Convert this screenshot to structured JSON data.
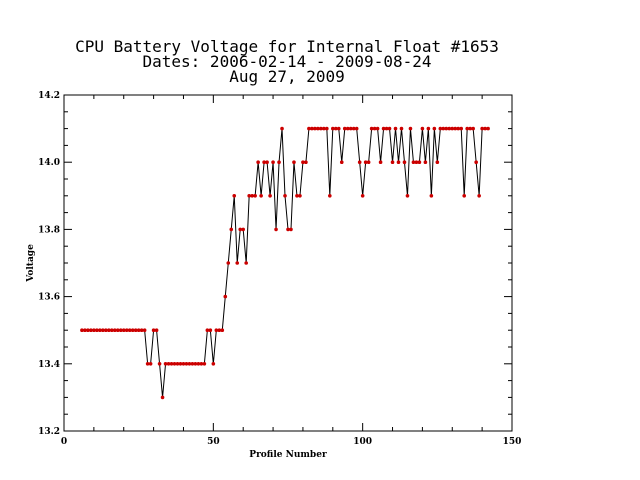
{
  "chart_data": {
    "type": "line",
    "title_lines": [
      "CPU Battery Voltage for Internal Float #1653",
      "Dates:  2006-02-14 -  2009-08-24",
      "Aug 27, 2009"
    ],
    "xlabel": "Profile Number",
    "ylabel": "Voltage",
    "xlim": [
      0,
      150
    ],
    "ylim": [
      13.2,
      14.2
    ],
    "x_ticks": [
      0,
      50,
      100,
      150
    ],
    "y_ticks": [
      13.2,
      13.4,
      13.6,
      13.8,
      14.0,
      14.2
    ],
    "y_tick_labels": [
      "13.2",
      "13.4",
      "13.6",
      "13.8",
      "14.0",
      "14.2"
    ],
    "grid": false,
    "line_color": "#000000",
    "marker_color": "#cc0000",
    "series": [
      {
        "x": [
          6,
          7,
          8,
          9,
          10,
          11,
          12,
          13,
          14,
          15,
          16,
          17,
          18,
          19,
          20,
          21,
          22,
          23,
          24,
          25,
          26,
          27,
          28,
          29,
          30,
          31,
          32,
          33,
          34,
          35,
          36,
          37,
          38,
          39,
          40,
          41,
          42,
          43,
          44,
          45,
          46,
          47,
          48,
          49,
          50,
          51,
          52,
          53,
          54,
          55,
          56,
          57,
          58,
          59,
          60,
          61,
          62,
          63,
          64,
          65,
          66,
          67,
          68,
          69,
          70,
          71,
          72,
          73,
          74,
          75,
          76,
          77,
          78,
          79,
          80,
          81,
          82,
          83,
          84,
          85,
          86,
          87,
          88,
          89,
          90,
          91,
          92,
          93,
          94,
          95,
          96,
          97,
          98,
          99,
          100,
          101,
          102,
          103,
          104,
          105,
          106,
          107,
          108,
          109,
          110,
          111,
          112,
          113,
          114,
          115,
          116,
          117,
          118,
          119,
          120,
          121,
          122,
          123,
          124,
          125,
          126,
          127,
          128,
          129,
          130,
          131,
          132,
          133,
          134,
          135,
          136,
          137,
          138,
          139,
          140,
          141,
          142
        ],
        "y": [
          13.5,
          13.5,
          13.5,
          13.5,
          13.5,
          13.5,
          13.5,
          13.5,
          13.5,
          13.5,
          13.5,
          13.5,
          13.5,
          13.5,
          13.5,
          13.5,
          13.5,
          13.5,
          13.5,
          13.5,
          13.5,
          13.5,
          13.4,
          13.4,
          13.5,
          13.5,
          13.4,
          13.3,
          13.4,
          13.4,
          13.4,
          13.4,
          13.4,
          13.4,
          13.4,
          13.4,
          13.4,
          13.4,
          13.4,
          13.4,
          13.4,
          13.4,
          13.5,
          13.5,
          13.4,
          13.5,
          13.5,
          13.5,
          13.6,
          13.7,
          13.8,
          13.9,
          13.7,
          13.8,
          13.8,
          13.7,
          13.9,
          13.9,
          13.9,
          14.0,
          13.9,
          14.0,
          14.0,
          13.9,
          14.0,
          13.8,
          14.0,
          14.1,
          13.9,
          13.8,
          13.8,
          14.0,
          13.9,
          13.9,
          14.0,
          14.0,
          14.1,
          14.1,
          14.1,
          14.1,
          14.1,
          14.1,
          14.1,
          13.9,
          14.1,
          14.1,
          14.1,
          14.0,
          14.1,
          14.1,
          14.1,
          14.1,
          14.1,
          14.0,
          13.9,
          14.0,
          14.0,
          14.1,
          14.1,
          14.1,
          14.0,
          14.1,
          14.1,
          14.1,
          14.0,
          14.1,
          14.0,
          14.1,
          14.0,
          13.9,
          14.1,
          14.0,
          14.0,
          14.0,
          14.1,
          14.0,
          14.1,
          13.9,
          14.1,
          14.0,
          14.1,
          14.1,
          14.1,
          14.1,
          14.1,
          14.1,
          14.1,
          14.1,
          13.9,
          14.1,
          14.1,
          14.1,
          14.0,
          13.9,
          14.1,
          14.1,
          14.1
        ]
      }
    ]
  }
}
